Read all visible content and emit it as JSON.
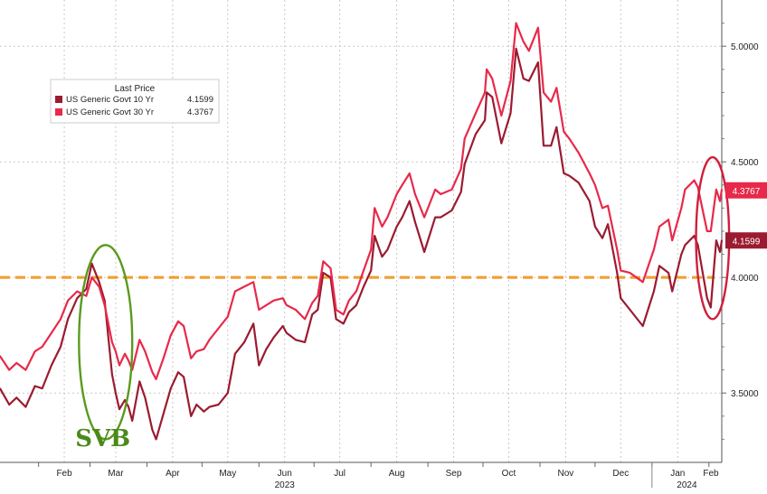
{
  "chart_data": {
    "type": "line",
    "title": "",
    "xlabel": "",
    "ylabel": "",
    "ylim": [
      3.2,
      5.2
    ],
    "x_range": [
      "2023-01-11",
      "2024-02-08"
    ],
    "y_ticks": [
      "3.5000",
      "4.0000",
      "4.5000",
      "5.0000"
    ],
    "x_ticks": [
      {
        "date": "2023-02-01",
        "label": "Feb"
      },
      {
        "date": "2023-03-01",
        "label": "Mar"
      },
      {
        "date": "2023-04-01",
        "label": "Apr"
      },
      {
        "date": "2023-05-01",
        "label": "May"
      },
      {
        "date": "2023-06-01",
        "label": "Jun"
      },
      {
        "date": "2023-07-01",
        "label": "Jul"
      },
      {
        "date": "2023-08-01",
        "label": "Aug"
      },
      {
        "date": "2023-09-01",
        "label": "Sep"
      },
      {
        "date": "2023-10-01",
        "label": "Oct"
      },
      {
        "date": "2023-11-01",
        "label": "Nov"
      },
      {
        "date": "2023-12-01",
        "label": "Dec"
      },
      {
        "date": "2024-01-01",
        "label": "Jan"
      },
      {
        "date": "2024-02-01",
        "label": "Feb"
      }
    ],
    "year_labels": [
      {
        "date": "2023-06-15",
        "label": "2023"
      },
      {
        "date": "2024-01-20",
        "label": "2024"
      }
    ],
    "grid": true,
    "legend": {
      "title": "Last Price",
      "position": "top-left",
      "entries": [
        {
          "label": "US Generic Govt 10 Yr",
          "value": "4.1599",
          "color": "#9b1b30"
        },
        {
          "label": "US Generic Govt 30 Yr",
          "value": "4.3767",
          "color": "#e8294a"
        }
      ]
    },
    "last_value_badges": [
      {
        "value": 4.3767,
        "text": "4.3767",
        "color": "#e8294a"
      },
      {
        "value": 4.1599,
        "text": "4.1599",
        "color": "#9b1b30"
      }
    ],
    "series": [
      {
        "name": "US Generic Govt 10 Yr",
        "color": "#9b1b30",
        "points": [
          [
            "2023-01-11",
            3.52
          ],
          [
            "2023-01-16",
            3.45
          ],
          [
            "2023-01-20",
            3.48
          ],
          [
            "2023-01-25",
            3.44
          ],
          [
            "2023-01-30",
            3.53
          ],
          [
            "2023-02-03",
            3.52
          ],
          [
            "2023-02-08",
            3.62
          ],
          [
            "2023-02-13",
            3.7
          ],
          [
            "2023-02-17",
            3.82
          ],
          [
            "2023-02-22",
            3.91
          ],
          [
            "2023-02-27",
            3.95
          ],
          [
            "2023-03-02",
            4.06
          ],
          [
            "2023-03-06",
            3.98
          ],
          [
            "2023-03-09",
            3.9
          ],
          [
            "2023-03-13",
            3.58
          ],
          [
            "2023-03-15",
            3.5
          ],
          [
            "2023-03-17",
            3.43
          ],
          [
            "2023-03-20",
            3.47
          ],
          [
            "2023-03-22",
            3.44
          ],
          [
            "2023-03-24",
            3.38
          ],
          [
            "2023-03-28",
            3.55
          ],
          [
            "2023-03-31",
            3.48
          ],
          [
            "2023-04-04",
            3.34
          ],
          [
            "2023-04-06",
            3.3
          ],
          [
            "2023-04-10",
            3.41
          ],
          [
            "2023-04-14",
            3.52
          ],
          [
            "2023-04-18",
            3.59
          ],
          [
            "2023-04-21",
            3.57
          ],
          [
            "2023-04-25",
            3.4
          ],
          [
            "2023-04-28",
            3.45
          ],
          [
            "2023-05-02",
            3.42
          ],
          [
            "2023-05-05",
            3.44
          ],
          [
            "2023-05-10",
            3.45
          ],
          [
            "2023-05-15",
            3.5
          ],
          [
            "2023-05-19",
            3.67
          ],
          [
            "2023-05-24",
            3.72
          ],
          [
            "2023-05-29",
            3.8
          ],
          [
            "2023-06-01",
            3.62
          ],
          [
            "2023-06-05",
            3.69
          ],
          [
            "2023-06-09",
            3.74
          ],
          [
            "2023-06-14",
            3.79
          ],
          [
            "2023-06-16",
            3.76
          ],
          [
            "2023-06-21",
            3.73
          ],
          [
            "2023-06-26",
            3.72
          ],
          [
            "2023-06-30",
            3.84
          ],
          [
            "2023-07-03",
            3.86
          ],
          [
            "2023-07-06",
            4.02
          ],
          [
            "2023-07-10",
            4.0
          ],
          [
            "2023-07-13",
            3.82
          ],
          [
            "2023-07-17",
            3.8
          ],
          [
            "2023-07-20",
            3.85
          ],
          [
            "2023-07-24",
            3.88
          ],
          [
            "2023-07-28",
            3.96
          ],
          [
            "2023-08-01",
            4.03
          ],
          [
            "2023-08-03",
            4.18
          ],
          [
            "2023-08-07",
            4.09
          ],
          [
            "2023-08-10",
            4.12
          ],
          [
            "2023-08-15",
            4.22
          ],
          [
            "2023-08-18",
            4.26
          ],
          [
            "2023-08-22",
            4.33
          ],
          [
            "2023-08-25",
            4.24
          ],
          [
            "2023-08-30",
            4.11
          ],
          [
            "2023-09-05",
            4.26
          ],
          [
            "2023-09-08",
            4.26
          ],
          [
            "2023-09-14",
            4.29
          ],
          [
            "2023-09-19",
            4.37
          ],
          [
            "2023-09-21",
            4.49
          ],
          [
            "2023-09-27",
            4.62
          ],
          [
            "2023-10-02",
            4.68
          ],
          [
            "2023-10-03",
            4.8
          ],
          [
            "2023-10-06",
            4.78
          ],
          [
            "2023-10-11",
            4.58
          ],
          [
            "2023-10-16",
            4.71
          ],
          [
            "2023-10-19",
            4.99
          ],
          [
            "2023-10-23",
            4.86
          ],
          [
            "2023-10-26",
            4.85
          ],
          [
            "2023-10-31",
            4.93
          ],
          [
            "2023-11-03",
            4.57
          ],
          [
            "2023-11-07",
            4.57
          ],
          [
            "2023-11-10",
            4.65
          ],
          [
            "2023-11-14",
            4.45
          ],
          [
            "2023-11-17",
            4.44
          ],
          [
            "2023-11-22",
            4.41
          ],
          [
            "2023-11-28",
            4.33
          ],
          [
            "2023-12-01",
            4.22
          ],
          [
            "2023-12-05",
            4.17
          ],
          [
            "2023-12-08",
            4.23
          ],
          [
            "2023-12-13",
            4.02
          ],
          [
            "2023-12-15",
            3.91
          ],
          [
            "2023-12-20",
            3.86
          ],
          [
            "2023-12-27",
            3.79
          ],
          [
            "2024-01-02",
            3.94
          ],
          [
            "2024-01-05",
            4.05
          ],
          [
            "2024-01-10",
            4.02
          ],
          [
            "2024-01-12",
            3.94
          ],
          [
            "2024-01-17",
            4.1
          ],
          [
            "2024-01-19",
            4.14
          ],
          [
            "2024-01-24",
            4.18
          ],
          [
            "2024-01-26",
            4.14
          ],
          [
            "2024-01-31",
            3.91
          ],
          [
            "2024-02-02",
            3.87
          ],
          [
            "2024-02-05",
            4.16
          ],
          [
            "2024-02-07",
            4.11
          ],
          [
            "2024-02-08",
            4.16
          ]
        ]
      },
      {
        "name": "US Generic Govt 30 Yr",
        "color": "#e8294a",
        "points": [
          [
            "2023-01-11",
            3.66
          ],
          [
            "2023-01-16",
            3.6
          ],
          [
            "2023-01-20",
            3.63
          ],
          [
            "2023-01-25",
            3.6
          ],
          [
            "2023-01-30",
            3.68
          ],
          [
            "2023-02-03",
            3.7
          ],
          [
            "2023-02-08",
            3.76
          ],
          [
            "2023-02-13",
            3.82
          ],
          [
            "2023-02-17",
            3.9
          ],
          [
            "2023-02-22",
            3.94
          ],
          [
            "2023-02-27",
            3.92
          ],
          [
            "2023-03-02",
            4.0
          ],
          [
            "2023-03-06",
            3.96
          ],
          [
            "2023-03-09",
            3.88
          ],
          [
            "2023-03-13",
            3.72
          ],
          [
            "2023-03-15",
            3.68
          ],
          [
            "2023-03-17",
            3.62
          ],
          [
            "2023-03-20",
            3.67
          ],
          [
            "2023-03-22",
            3.64
          ],
          [
            "2023-03-24",
            3.6
          ],
          [
            "2023-03-28",
            3.73
          ],
          [
            "2023-03-31",
            3.68
          ],
          [
            "2023-04-04",
            3.59
          ],
          [
            "2023-04-06",
            3.56
          ],
          [
            "2023-04-10",
            3.65
          ],
          [
            "2023-04-14",
            3.75
          ],
          [
            "2023-04-18",
            3.81
          ],
          [
            "2023-04-21",
            3.79
          ],
          [
            "2023-04-25",
            3.65
          ],
          [
            "2023-04-28",
            3.68
          ],
          [
            "2023-05-02",
            3.69
          ],
          [
            "2023-05-05",
            3.73
          ],
          [
            "2023-05-10",
            3.78
          ],
          [
            "2023-05-15",
            3.83
          ],
          [
            "2023-05-19",
            3.94
          ],
          [
            "2023-05-24",
            3.96
          ],
          [
            "2023-05-29",
            3.98
          ],
          [
            "2023-06-01",
            3.86
          ],
          [
            "2023-06-05",
            3.88
          ],
          [
            "2023-06-09",
            3.9
          ],
          [
            "2023-06-14",
            3.91
          ],
          [
            "2023-06-16",
            3.88
          ],
          [
            "2023-06-21",
            3.86
          ],
          [
            "2023-06-26",
            3.82
          ],
          [
            "2023-06-30",
            3.89
          ],
          [
            "2023-07-03",
            3.92
          ],
          [
            "2023-07-06",
            4.07
          ],
          [
            "2023-07-10",
            4.04
          ],
          [
            "2023-07-13",
            3.86
          ],
          [
            "2023-07-17",
            3.84
          ],
          [
            "2023-07-20",
            3.9
          ],
          [
            "2023-07-24",
            3.94
          ],
          [
            "2023-07-28",
            4.03
          ],
          [
            "2023-08-01",
            4.12
          ],
          [
            "2023-08-03",
            4.3
          ],
          [
            "2023-08-07",
            4.22
          ],
          [
            "2023-08-10",
            4.26
          ],
          [
            "2023-08-15",
            4.36
          ],
          [
            "2023-08-18",
            4.4
          ],
          [
            "2023-08-22",
            4.45
          ],
          [
            "2023-08-25",
            4.36
          ],
          [
            "2023-08-30",
            4.26
          ],
          [
            "2023-09-05",
            4.38
          ],
          [
            "2023-09-08",
            4.36
          ],
          [
            "2023-09-14",
            4.38
          ],
          [
            "2023-09-19",
            4.47
          ],
          [
            "2023-09-21",
            4.6
          ],
          [
            "2023-09-27",
            4.71
          ],
          [
            "2023-10-02",
            4.8
          ],
          [
            "2023-10-03",
            4.9
          ],
          [
            "2023-10-06",
            4.86
          ],
          [
            "2023-10-11",
            4.7
          ],
          [
            "2023-10-16",
            4.85
          ],
          [
            "2023-10-19",
            5.1
          ],
          [
            "2023-10-23",
            5.02
          ],
          [
            "2023-10-26",
            4.98
          ],
          [
            "2023-10-31",
            5.08
          ],
          [
            "2023-11-03",
            4.8
          ],
          [
            "2023-11-07",
            4.76
          ],
          [
            "2023-11-10",
            4.82
          ],
          [
            "2023-11-14",
            4.63
          ],
          [
            "2023-11-17",
            4.6
          ],
          [
            "2023-11-22",
            4.54
          ],
          [
            "2023-11-28",
            4.45
          ],
          [
            "2023-12-01",
            4.4
          ],
          [
            "2023-12-05",
            4.3
          ],
          [
            "2023-12-08",
            4.31
          ],
          [
            "2023-12-13",
            4.12
          ],
          [
            "2023-12-15",
            4.03
          ],
          [
            "2023-12-20",
            4.02
          ],
          [
            "2023-12-27",
            3.98
          ],
          [
            "2024-01-02",
            4.12
          ],
          [
            "2024-01-05",
            4.22
          ],
          [
            "2024-01-10",
            4.25
          ],
          [
            "2024-01-12",
            4.16
          ],
          [
            "2024-01-17",
            4.3
          ],
          [
            "2024-01-19",
            4.38
          ],
          [
            "2024-01-24",
            4.42
          ],
          [
            "2024-01-26",
            4.39
          ],
          [
            "2024-01-31",
            4.2
          ],
          [
            "2024-02-02",
            4.2
          ],
          [
            "2024-02-05",
            4.38
          ],
          [
            "2024-02-07",
            4.33
          ],
          [
            "2024-02-08",
            4.38
          ]
        ]
      }
    ],
    "annotations": [
      {
        "type": "hline",
        "value": 4.0,
        "style": "dashed",
        "color": "#f0a030"
      },
      {
        "type": "ellipse",
        "color": "#5a9a1e",
        "x_from": "2023-02-23",
        "x_to": "2023-03-24",
        "y_from": 3.3,
        "y_to": 4.14
      },
      {
        "type": "ellipse",
        "color": "#d01f3c",
        "x_from": "2024-01-25",
        "x_to": "2024-02-12",
        "y_from": 3.82,
        "y_to": 4.52
      },
      {
        "type": "text",
        "text": "SVB",
        "color": "#4a8a1a",
        "date": "2023-03-08"
      }
    ]
  }
}
